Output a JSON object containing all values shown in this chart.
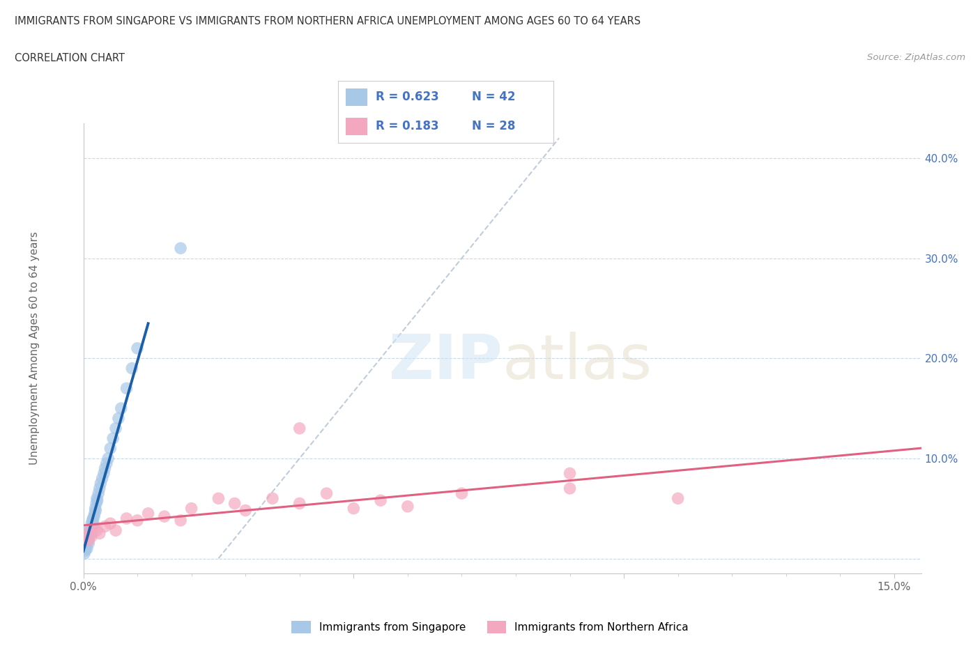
{
  "title_line1": "IMMIGRANTS FROM SINGAPORE VS IMMIGRANTS FROM NORTHERN AFRICA UNEMPLOYMENT AMONG AGES 60 TO 64 YEARS",
  "title_line2": "CORRELATION CHART",
  "source_text": "Source: ZipAtlas.com",
  "ylabel": "Unemployment Among Ages 60 to 64 years",
  "xlim": [
    0.0,
    0.155
  ],
  "ylim": [
    -0.015,
    0.435
  ],
  "r_singapore": 0.623,
  "n_singapore": 42,
  "r_northafrica": 0.183,
  "n_northafrica": 28,
  "singapore_color": "#a8c8e8",
  "northafrica_color": "#f4a8c0",
  "singapore_line_color": "#1a5fa8",
  "northafrica_line_color": "#e06080",
  "background_color": "#ffffff",
  "singapore_x": [
    0.0002,
    0.0003,
    0.0004,
    0.0005,
    0.0006,
    0.0007,
    0.0008,
    0.0009,
    0.001,
    0.001,
    0.0011,
    0.0012,
    0.0013,
    0.0014,
    0.0015,
    0.0016,
    0.0017,
    0.0018,
    0.0019,
    0.002,
    0.0021,
    0.0022,
    0.0023,
    0.0024,
    0.0025,
    0.0026,
    0.0028,
    0.003,
    0.0032,
    0.0035,
    0.0038,
    0.004,
    0.0043,
    0.0046,
    0.005,
    0.0055,
    0.006,
    0.0065,
    0.007,
    0.008,
    0.009,
    0.01
  ],
  "singapore_y": [
    0.005,
    0.01,
    0.008,
    0.012,
    0.015,
    0.01,
    0.018,
    0.02,
    0.015,
    0.025,
    0.022,
    0.028,
    0.03,
    0.025,
    0.035,
    0.032,
    0.038,
    0.04,
    0.035,
    0.042,
    0.045,
    0.05,
    0.048,
    0.055,
    0.06,
    0.058,
    0.065,
    0.07,
    0.075,
    0.08,
    0.085,
    0.09,
    0.095,
    0.1,
    0.11,
    0.12,
    0.13,
    0.14,
    0.15,
    0.17,
    0.19,
    0.21
  ],
  "northafrica_x": [
    0.0003,
    0.0006,
    0.001,
    0.0015,
    0.002,
    0.0025,
    0.003,
    0.004,
    0.005,
    0.006,
    0.008,
    0.01,
    0.012,
    0.015,
    0.018,
    0.02,
    0.025,
    0.028,
    0.03,
    0.035,
    0.04,
    0.045,
    0.05,
    0.055,
    0.06,
    0.07,
    0.09,
    0.11
  ],
  "northafrica_y": [
    0.02,
    0.025,
    0.018,
    0.022,
    0.03,
    0.028,
    0.025,
    0.032,
    0.035,
    0.028,
    0.04,
    0.038,
    0.045,
    0.042,
    0.038,
    0.05,
    0.06,
    0.055,
    0.048,
    0.06,
    0.055,
    0.065,
    0.05,
    0.058,
    0.052,
    0.065,
    0.07,
    0.06
  ],
  "northafrica_outlier_x": [
    0.04
  ],
  "northafrica_outlier_y": [
    0.13
  ],
  "northafrica_high_x": [
    0.09
  ],
  "northafrica_high_y": [
    0.085
  ],
  "singapore_outlier_x": [
    0.018
  ],
  "singapore_outlier_y": [
    0.31
  ]
}
